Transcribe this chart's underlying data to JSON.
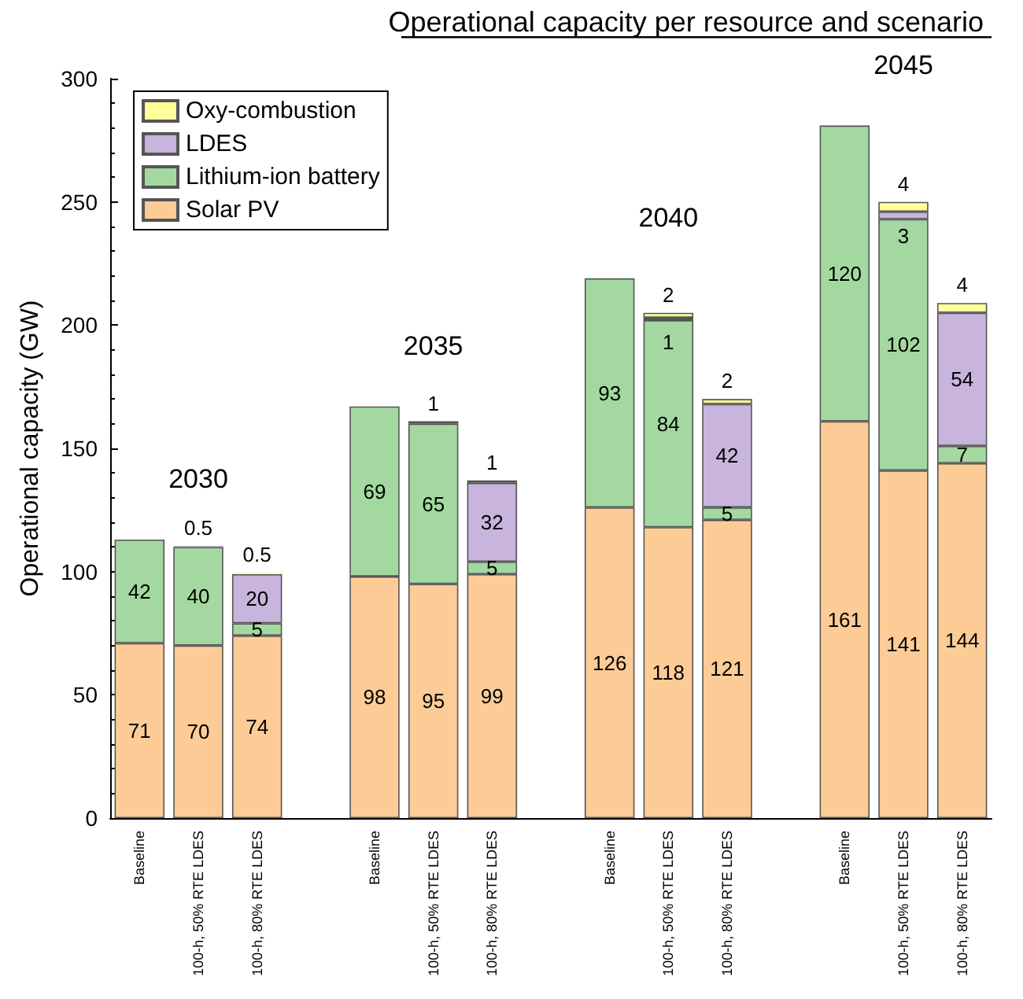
{
  "chart_data": {
    "type": "bar",
    "title": "Operational capacity per resource and scenario",
    "ylabel": "Operational capacity (GW)",
    "categories": [
      "Baseline",
      "100-h, 50% RTE LDES",
      "100-h, 80% RTE LDES",
      null,
      "Baseline",
      "100-h, 50% RTE LDES",
      "100-h, 80% RTE LDES",
      null,
      "Baseline",
      "100-h, 50% RTE LDES",
      "100-h, 80% RTE LDES",
      null,
      "Baseline",
      "100-h, 50% RTE LDES",
      "100-h, 80% RTE LDES"
    ],
    "stacked": true,
    "series": [
      {
        "name": "Solar PV",
        "color": "#fdcc96",
        "values": [
          71,
          70,
          74,
          null,
          98,
          95,
          99,
          null,
          126,
          118,
          121,
          null,
          161,
          141,
          144
        ]
      },
      {
        "name": "Lithium-ion battery",
        "color": "#a3d9a0",
        "values": [
          42,
          40,
          5,
          null,
          69,
          65,
          5,
          null,
          93,
          84,
          5,
          null,
          120,
          102,
          7
        ]
      },
      {
        "name": "LDES",
        "color": "#c8b4dc",
        "values": [
          null,
          0.5,
          20,
          null,
          null,
          1,
          32,
          null,
          null,
          1,
          42,
          null,
          null,
          3,
          54
        ]
      },
      {
        "name": "Oxy-combustion",
        "color": "#ffff99",
        "values": [
          null,
          null,
          0.5,
          null,
          null,
          null,
          1,
          null,
          null,
          2,
          2,
          null,
          null,
          4,
          4
        ]
      }
    ],
    "data_labels": true,
    "annotations": [
      "2030",
      "2035",
      "2040",
      "2045"
    ],
    "ylim": [
      0,
      300
    ],
    "yticks": [
      0,
      50,
      100,
      150,
      200,
      250,
      300
    ],
    "grid": false,
    "legend": "top left"
  }
}
